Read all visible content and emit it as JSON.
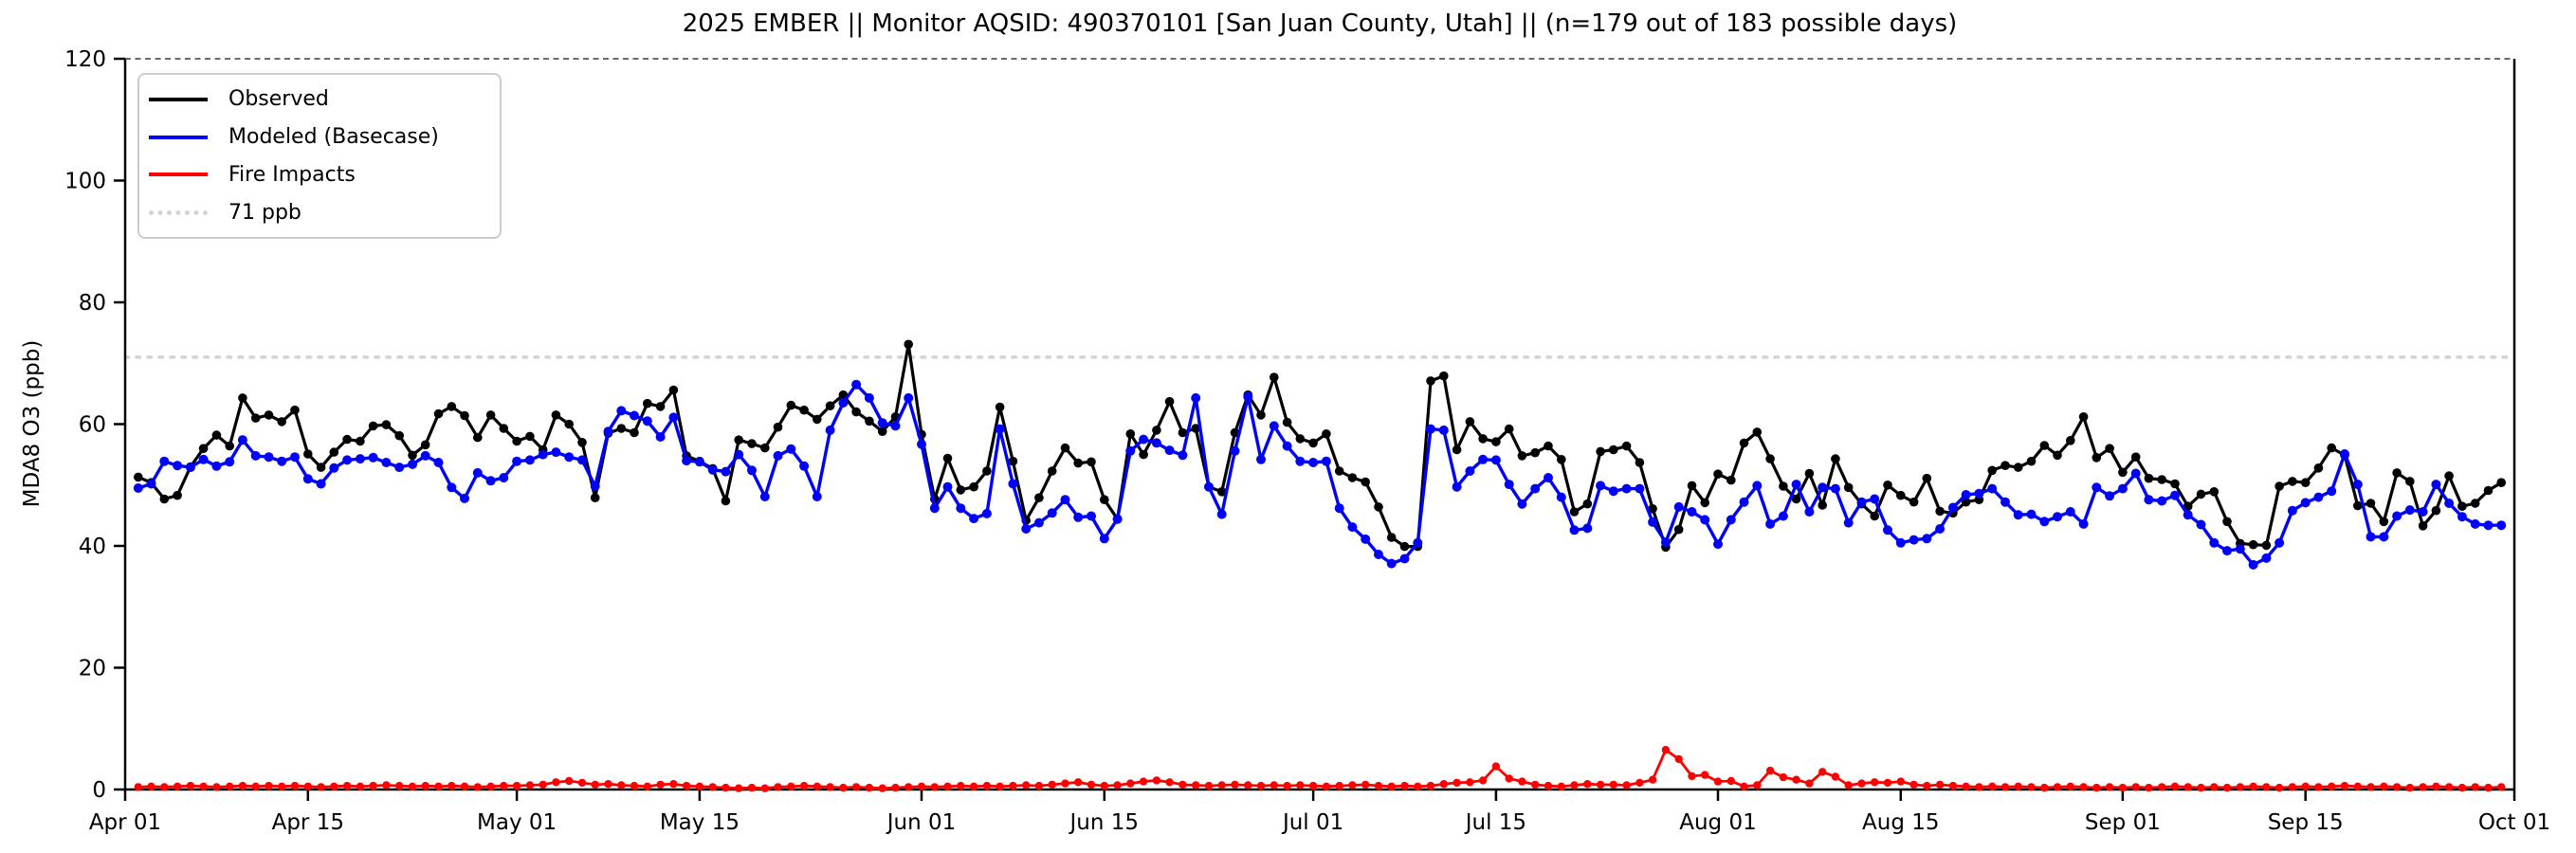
{
  "header": {
    "title": "2025 EMBER || Monitor AQSID: 490370101 [San Juan County, Utah] || (n=179 out of 183 possible days)"
  },
  "colors": {
    "observed": "#000000",
    "modeled": "#0000ff",
    "fire": "#ff0000",
    "threshold": "#d3d3d3",
    "axis": "#000000",
    "top_spine": "#3a3a3a",
    "legend_border": "#cccccc"
  },
  "legend": {
    "items": [
      {
        "label": "Observed",
        "color": "#000000",
        "style": "solid"
      },
      {
        "label": "Modeled (Basecase)",
        "color": "#0000ff",
        "style": "solid"
      },
      {
        "label": "Fire Impacts",
        "color": "#ff0000",
        "style": "solid"
      },
      {
        "label": "71 ppb",
        "color": "#d3d3d3",
        "style": "dotted"
      }
    ]
  },
  "chart_data": {
    "type": "line",
    "title": "2025 EMBER || Monitor AQSID: 490370101 [San Juan County, Utah] || (n=179 out of 183 possible days)",
    "xlabel": "",
    "ylabel": "MDA8 O3 (ppb)",
    "ylim": [
      0,
      120
    ],
    "yticks": [
      0,
      20,
      40,
      60,
      80,
      100,
      120
    ],
    "x_total_days": 183,
    "x_tick_days": [
      0,
      14,
      30,
      44,
      61,
      75,
      91,
      105,
      122,
      136,
      153,
      167,
      183
    ],
    "x_tick_labels": [
      "Apr 01",
      "Apr 15",
      "May 01",
      "May 15",
      "Jun 01",
      "Jun 15",
      "Jul 01",
      "Jul 15",
      "Aug 01",
      "Aug 15",
      "Sep 01",
      "Sep 15",
      "Oct 01"
    ],
    "threshold": {
      "value": 71,
      "label": "71 ppb",
      "color": "#d3d3d3",
      "style": "dotted"
    },
    "grid": false,
    "legend_position": "upper-left",
    "n_days_label": "n=179 out of 183 possible days",
    "series": [
      {
        "name": "Observed",
        "color": "#000000",
        "marker": "circle",
        "values": [
          null,
          51.3,
          50.4,
          47.7,
          48.3,
          53.0,
          56.0,
          58.2,
          56.4,
          64.3,
          61.0,
          61.5,
          60.4,
          62.3,
          55.1,
          52.9,
          55.4,
          57.5,
          57.2,
          59.7,
          59.9,
          58.1,
          54.9,
          56.6,
          61.7,
          62.9,
          61.4,
          57.8,
          61.5,
          59.3,
          57.2,
          58.0,
          55.8,
          61.5,
          60.0,
          57.0,
          47.9,
          58.5,
          59.3,
          58.6,
          63.4,
          62.9,
          65.6,
          54.8,
          53.9,
          52.7,
          47.4,
          57.4,
          56.8,
          56.1,
          59.5,
          63.1,
          62.3,
          60.8,
          63.0,
          64.8,
          62.0,
          60.5,
          58.8,
          61.2,
          73.1,
          58.3,
          47.7,
          54.4,
          49.2,
          49.7,
          52.3,
          62.8,
          53.9,
          44.2,
          47.9,
          52.3,
          56.1,
          53.6,
          53.8,
          47.6,
          44.4,
          58.4,
          55.0,
          59.0,
          63.7,
          58.6,
          59.3,
          49.7,
          48.9,
          58.6,
          64.8,
          61.5,
          67.7,
          60.3,
          57.6,
          56.9,
          58.4,
          52.3,
          51.2,
          50.5,
          46.4,
          41.4,
          39.9,
          39.9,
          67.1,
          67.9,
          55.8,
          60.4,
          57.6,
          57.1,
          59.2,
          54.8,
          55.3,
          56.4,
          54.2,
          45.6,
          46.9,
          55.5,
          55.8,
          56.4,
          53.7,
          46.1,
          39.8,
          42.7,
          49.9,
          47.1,
          51.8,
          50.8,
          56.9,
          58.7,
          54.3,
          49.8,
          47.7,
          51.9,
          46.7,
          54.3,
          49.6,
          46.9,
          44.9,
          50.0,
          48.3,
          47.2,
          51.1,
          45.7,
          45.4,
          47.2,
          47.6,
          52.4,
          53.2,
          52.9,
          53.9,
          56.5,
          54.9,
          57.3,
          61.2,
          54.5,
          56.0,
          52.1,
          54.6,
          51.1,
          50.9,
          50.2,
          46.5,
          48.5,
          48.9,
          44.0,
          40.4,
          40.2,
          40.1,
          49.8,
          50.6,
          50.4,
          52.8,
          56.1,
          54.9,
          46.6,
          47.0,
          44.0,
          52.0,
          50.6,
          43.3,
          45.8,
          51.5,
          46.5,
          47.0,
          49.1,
          50.4
        ]
      },
      {
        "name": "Modeled (Basecase)",
        "color": "#0000ff",
        "marker": "circle",
        "values": [
          null,
          49.5,
          50.2,
          53.9,
          53.2,
          52.9,
          54.2,
          53.1,
          53.8,
          57.4,
          54.8,
          54.6,
          53.9,
          54.6,
          51.0,
          50.2,
          52.8,
          54.1,
          54.3,
          54.5,
          53.7,
          52.9,
          53.4,
          54.8,
          53.7,
          49.6,
          47.8,
          52.0,
          50.7,
          51.2,
          53.9,
          54.1,
          55.0,
          55.4,
          54.6,
          54.1,
          49.8,
          58.8,
          62.2,
          61.4,
          60.5,
          57.9,
          61.1,
          54.0,
          53.8,
          52.5,
          52.2,
          55.0,
          52.4,
          48.1,
          54.8,
          55.9,
          53.1,
          48.1,
          59.0,
          63.5,
          66.5,
          64.3,
          60.2,
          59.7,
          64.3,
          56.7,
          46.2,
          49.7,
          46.2,
          44.5,
          45.3,
          59.2,
          50.2,
          42.8,
          43.8,
          45.4,
          47.6,
          44.7,
          44.9,
          41.2,
          44.4,
          55.6,
          57.5,
          56.9,
          55.7,
          54.9,
          64.3,
          49.7,
          45.2,
          55.6,
          64.5,
          54.2,
          59.7,
          56.4,
          53.9,
          53.7,
          53.9,
          46.2,
          43.1,
          41.1,
          38.6,
          37.1,
          37.9,
          40.5,
          59.2,
          59.0,
          49.7,
          52.3,
          54.2,
          54.1,
          50.1,
          46.9,
          49.4,
          51.2,
          48.0,
          42.6,
          42.9,
          49.9,
          49.0,
          49.4,
          49.4,
          43.9,
          40.6,
          46.4,
          45.6,
          44.3,
          40.3,
          44.3,
          47.2,
          49.9,
          43.6,
          44.9,
          50.1,
          45.6,
          49.6,
          49.4,
          43.8,
          47.2,
          47.7,
          42.6,
          40.5,
          41.0,
          41.2,
          42.8,
          46.3,
          48.4,
          48.6,
          49.4,
          47.2,
          45.1,
          45.2,
          44.0,
          44.8,
          45.6,
          43.6,
          49.6,
          48.2,
          49.4,
          51.9,
          47.6,
          47.4,
          48.3,
          45.1,
          43.5,
          40.5,
          39.2,
          39.5,
          36.9,
          38.0,
          40.5,
          45.8,
          47.1,
          48.0,
          49.0,
          55.1,
          50.1,
          41.5,
          41.5,
          44.9,
          45.9,
          45.6,
          50.1,
          47.0,
          44.8,
          43.6,
          43.4,
          43.4
        ]
      },
      {
        "name": "Fire Impacts",
        "color": "#ff0000",
        "marker": "circle",
        "values": [
          null,
          0.4,
          0.5,
          0.4,
          0.5,
          0.6,
          0.5,
          0.4,
          0.5,
          0.6,
          0.5,
          0.6,
          0.5,
          0.6,
          0.5,
          0.4,
          0.5,
          0.6,
          0.5,
          0.6,
          0.7,
          0.6,
          0.5,
          0.6,
          0.5,
          0.6,
          0.5,
          0.4,
          0.5,
          0.6,
          0.6,
          0.7,
          0.8,
          1.2,
          1.4,
          1.1,
          0.8,
          0.9,
          0.7,
          0.6,
          0.5,
          0.8,
          0.9,
          0.6,
          0.5,
          0.4,
          0.3,
          0.2,
          0.3,
          0.2,
          0.4,
          0.5,
          0.6,
          0.5,
          0.4,
          0.3,
          0.4,
          0.3,
          0.2,
          0.3,
          0.4,
          0.5,
          0.4,
          0.5,
          0.6,
          0.5,
          0.6,
          0.5,
          0.6,
          0.7,
          0.6,
          0.8,
          1.0,
          1.2,
          0.8,
          0.6,
          0.7,
          1.0,
          1.3,
          1.5,
          1.2,
          0.8,
          0.7,
          0.6,
          0.7,
          0.8,
          0.7,
          0.6,
          0.7,
          0.6,
          0.7,
          0.6,
          0.5,
          0.6,
          0.7,
          0.8,
          0.6,
          0.5,
          0.6,
          0.5,
          0.6,
          0.9,
          1.1,
          1.2,
          1.5,
          3.8,
          1.8,
          1.3,
          0.8,
          0.6,
          0.5,
          0.7,
          0.9,
          0.8,
          0.8,
          0.7,
          1.1,
          1.6,
          6.5,
          5.0,
          2.2,
          2.4,
          1.3,
          1.4,
          0.5,
          0.7,
          3.1,
          2.0,
          1.6,
          1.0,
          2.9,
          2.1,
          0.7,
          1.0,
          1.2,
          1.1,
          1.3,
          0.8,
          0.6,
          0.8,
          0.6,
          0.5,
          0.4,
          0.5,
          0.4,
          0.5,
          0.4,
          0.3,
          0.4,
          0.5,
          0.4,
          0.3,
          0.4,
          0.3,
          0.4,
          0.3,
          0.4,
          0.5,
          0.4,
          0.3,
          0.4,
          0.3,
          0.4,
          0.5,
          0.4,
          0.3,
          0.4,
          0.5,
          0.4,
          0.5,
          0.6,
          0.5,
          0.4,
          0.5,
          0.4,
          0.3,
          0.4,
          0.5,
          0.4,
          0.3,
          0.4,
          0.3,
          0.4
        ]
      }
    ]
  }
}
